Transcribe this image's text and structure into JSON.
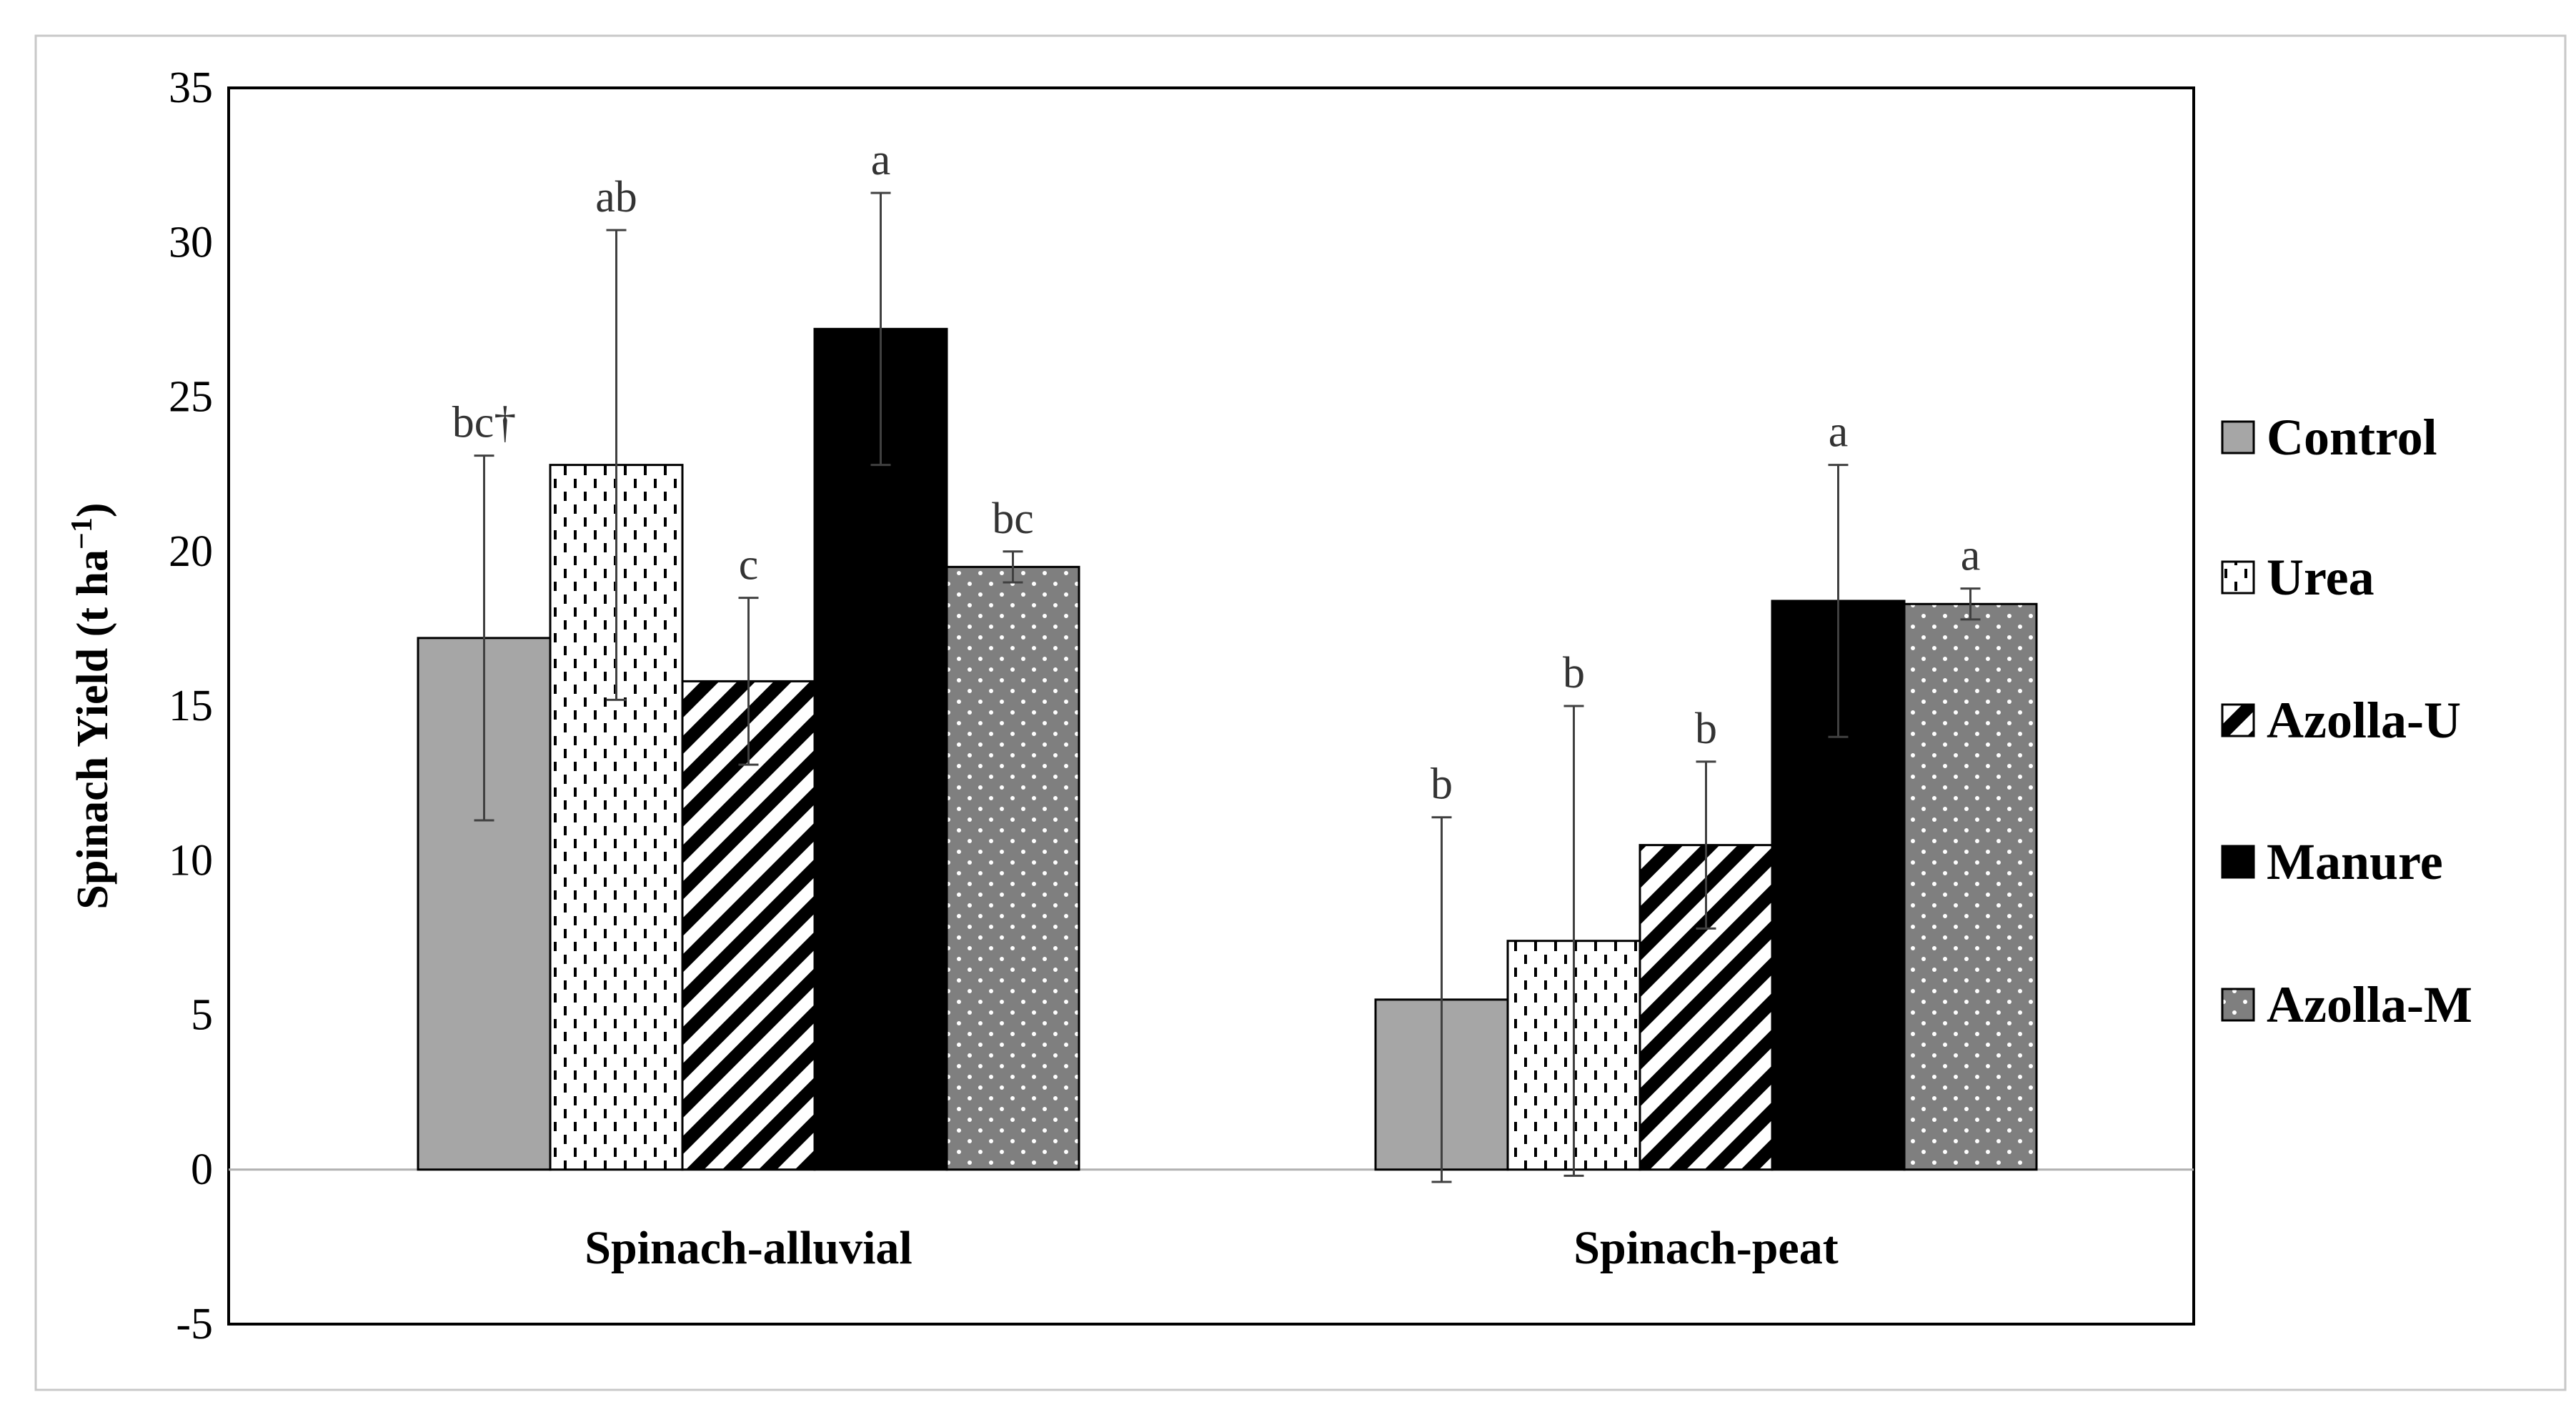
{
  "chart_data": {
    "type": "bar",
    "title": "",
    "xlabel": "",
    "ylabel": "Spinach Yield (t ha",
    "ylabel_superscript": "−1",
    "ylabel_close": ")",
    "ylim": [
      -5,
      35
    ],
    "yticks": [
      35,
      30,
      25,
      20,
      15,
      10,
      5,
      0,
      -5
    ],
    "categories": [
      "Spinach-alluvial",
      "Spinach-peat"
    ],
    "legend_position": "right",
    "series": [
      {
        "name": "Control",
        "pattern": "gray",
        "color": "#a6a6a6",
        "values": [
          17.2,
          5.5
        ],
        "errors": [
          5.9,
          5.9
        ],
        "letters": [
          "bc†",
          "b"
        ]
      },
      {
        "name": "Urea",
        "pattern": "dashes",
        "color": "#ffffff",
        "values": [
          22.8,
          7.4
        ],
        "errors": [
          7.6,
          7.6
        ],
        "letters": [
          "ab",
          "b"
        ]
      },
      {
        "name": "Azolla-U",
        "pattern": "diagonal",
        "color": "#ffffff",
        "values": [
          15.8,
          10.5
        ],
        "errors": [
          2.7,
          2.7
        ],
        "letters": [
          "c",
          "b"
        ]
      },
      {
        "name": "Manure",
        "pattern": "black",
        "color": "#000000",
        "values": [
          27.2,
          18.4
        ],
        "errors": [
          4.4,
          4.4
        ],
        "letters": [
          "a",
          "a"
        ]
      },
      {
        "name": "Azolla-M",
        "pattern": "dots",
        "color": "#808080",
        "values": [
          19.5,
          18.3
        ],
        "errors": [
          0.5,
          0.5
        ],
        "letters": [
          "bc",
          "a"
        ]
      }
    ]
  }
}
